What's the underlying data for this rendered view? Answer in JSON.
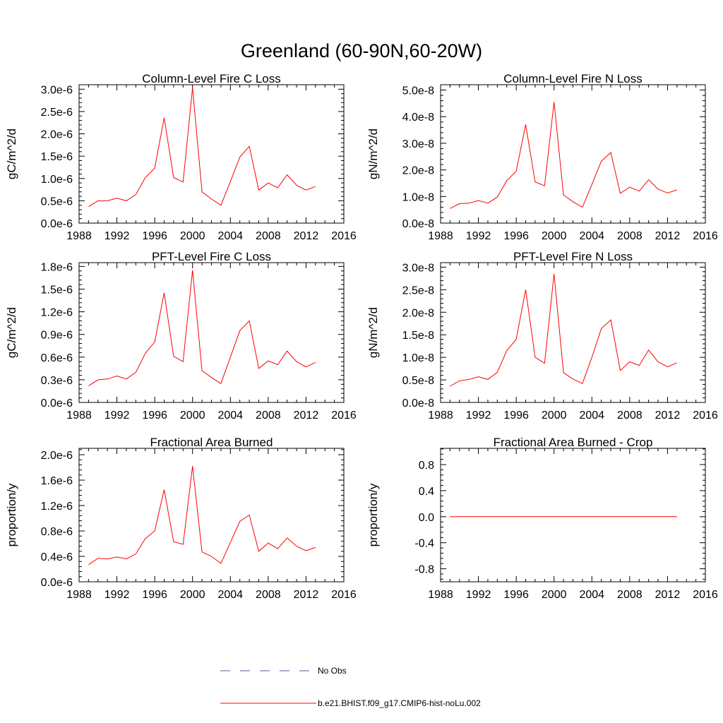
{
  "figure": {
    "title": "Greenland (60-90N,60-20W)"
  },
  "legend": {
    "items": [
      {
        "label": "No Obs",
        "color": "#5a5aa0",
        "dashed": true
      },
      {
        "label": "b.e21.BHIST.f09_g17.CMIP6-hist-noLu.002",
        "color": "#ff0000",
        "dashed": false
      }
    ]
  },
  "chart_data": [
    {
      "type": "line",
      "title": "Column-Level Fire C Loss",
      "ylabel": "gC/m^2/d",
      "xlim": [
        1988,
        2016
      ],
      "ylim": [
        0,
        3.1e-06
      ],
      "xticks": [
        1988,
        1992,
        1996,
        2000,
        2004,
        2008,
        2012,
        2016
      ],
      "yticks": [
        0,
        5e-07,
        1e-06,
        1.5e-06,
        2e-06,
        2.5e-06,
        3e-06
      ],
      "ytick_labels": [
        "0.0e-6",
        "0.5e-6",
        "1.0e-6",
        "1.5e-6",
        "2.0e-6",
        "2.5e-6",
        "3.0e-6"
      ],
      "x": [
        1989,
        1990,
        1991,
        1992,
        1993,
        1994,
        1995,
        1996,
        1997,
        1998,
        1999,
        2000,
        2001,
        2002,
        2003,
        2004,
        2005,
        2006,
        2007,
        2008,
        2009,
        2010,
        2011,
        2012,
        2013
      ],
      "series": [
        {
          "name": "b.e21.BHIST.f09_g17.CMIP6-hist-noLu.002",
          "color": "#ff0000",
          "values": [
            3.7e-07,
            5e-07,
            5e-07,
            5.6e-07,
            5e-07,
            6.4e-07,
            1.02e-06,
            1.23e-06,
            2.36e-06,
            1.02e-06,
            9.2e-07,
            3.03e-06,
            7e-07,
            5.4e-07,
            4e-07,
            9.3e-07,
            1.48e-06,
            1.72e-06,
            7.4e-07,
            9e-07,
            7.9e-07,
            1.08e-06,
            8.5e-07,
            7.4e-07,
            8.2e-07
          ]
        }
      ]
    },
    {
      "type": "line",
      "title": "Column-Level Fire N Loss",
      "ylabel": "gN/m^2/d",
      "xlim": [
        1988,
        2016
      ],
      "ylim": [
        0,
        5.2e-08
      ],
      "xticks": [
        1988,
        1992,
        1996,
        2000,
        2004,
        2008,
        2012,
        2016
      ],
      "yticks": [
        0,
        1e-08,
        2e-08,
        3e-08,
        4e-08,
        5e-08
      ],
      "ytick_labels": [
        "0.0e-8",
        "1.0e-8",
        "2.0e-8",
        "3.0e-8",
        "4.0e-8",
        "5.0e-8"
      ],
      "x": [
        1989,
        1990,
        1991,
        1992,
        1993,
        1994,
        1995,
        1996,
        1997,
        1998,
        1999,
        2000,
        2001,
        2002,
        2003,
        2004,
        2005,
        2006,
        2007,
        2008,
        2009,
        2010,
        2011,
        2012,
        2013
      ],
      "series": [
        {
          "name": "b.e21.BHIST.f09_g17.CMIP6-hist-noLu.002",
          "color": "#ff0000",
          "values": [
            5.5e-09,
            7.3e-09,
            7.5e-09,
            8.5e-09,
            7.5e-09,
            9.8e-09,
            1.6e-08,
            1.95e-08,
            3.7e-08,
            1.55e-08,
            1.4e-08,
            4.55e-08,
            1.06e-08,
            8e-09,
            6e-09,
            1.45e-08,
            2.33e-08,
            2.65e-08,
            1.12e-08,
            1.35e-08,
            1.2e-08,
            1.63e-08,
            1.28e-08,
            1.13e-08,
            1.25e-08
          ]
        }
      ]
    },
    {
      "type": "line",
      "title": "PFT-Level Fire C Loss",
      "ylabel": "gC/m^2/d",
      "xlim": [
        1988,
        2016
      ],
      "ylim": [
        0,
        1.85e-06
      ],
      "xticks": [
        1988,
        1992,
        1996,
        2000,
        2004,
        2008,
        2012,
        2016
      ],
      "yticks": [
        0,
        3e-07,
        6e-07,
        9e-07,
        1.2e-06,
        1.5e-06,
        1.8e-06
      ],
      "ytick_labels": [
        "0.0e-6",
        "0.3e-6",
        "0.6e-6",
        "0.9e-6",
        "1.2e-6",
        "1.5e-6",
        "1.8e-6"
      ],
      "x": [
        1989,
        1990,
        1991,
        1992,
        1993,
        1994,
        1995,
        1996,
        1997,
        1998,
        1999,
        2000,
        2001,
        2002,
        2003,
        2004,
        2005,
        2006,
        2007,
        2008,
        2009,
        2010,
        2011,
        2012,
        2013
      ],
      "series": [
        {
          "name": "b.e21.BHIST.f09_g17.CMIP6-hist-noLu.002",
          "color": "#ff0000",
          "values": [
            2.2e-07,
            3e-07,
            3.1e-07,
            3.5e-07,
            3.1e-07,
            4e-07,
            6.5e-07,
            8e-07,
            1.45e-06,
            6.1e-07,
            5.4e-07,
            1.75e-06,
            4.2e-07,
            3.3e-07,
            2.5e-07,
            6e-07,
            9.5e-07,
            1.08e-06,
            4.5e-07,
            5.5e-07,
            5e-07,
            6.8e-07,
            5.4e-07,
            4.7e-07,
            5.3e-07
          ]
        }
      ]
    },
    {
      "type": "line",
      "title": "PFT-Level Fire N Loss",
      "ylabel": "gN/m^2/d",
      "xlim": [
        1988,
        2016
      ],
      "ylim": [
        0,
        3.1e-08
      ],
      "xticks": [
        1988,
        1992,
        1996,
        2000,
        2004,
        2008,
        2012,
        2016
      ],
      "yticks": [
        0,
        5e-09,
        1e-08,
        1.5e-08,
        2e-08,
        2.5e-08,
        3e-08
      ],
      "ytick_labels": [
        "0.0e-8",
        "0.5e-8",
        "1.0e-8",
        "1.5e-8",
        "2.0e-8",
        "2.5e-8",
        "3.0e-8"
      ],
      "x": [
        1989,
        1990,
        1991,
        1992,
        1993,
        1994,
        1995,
        1996,
        1997,
        1998,
        1999,
        2000,
        2001,
        2002,
        2003,
        2004,
        2005,
        2006,
        2007,
        2008,
        2009,
        2010,
        2011,
        2012,
        2013
      ],
      "series": [
        {
          "name": "b.e21.BHIST.f09_g17.CMIP6-hist-noLu.002",
          "color": "#ff0000",
          "values": [
            3.6e-09,
            4.8e-09,
            5.1e-09,
            5.7e-09,
            5.1e-09,
            6.7e-09,
            1.15e-08,
            1.4e-08,
            2.5e-08,
            1e-08,
            8.7e-09,
            2.85e-08,
            6.6e-09,
            5.2e-09,
            4.2e-09,
            1e-08,
            1.64e-08,
            1.83e-08,
            7.1e-09,
            9e-09,
            8.2e-09,
            1.16e-08,
            9e-09,
            7.9e-09,
            8.8e-09
          ]
        }
      ]
    },
    {
      "type": "line",
      "title": "Fractional Area Burned",
      "ylabel": "proportion/y",
      "xlim": [
        1988,
        2016
      ],
      "ylim": [
        0,
        2.1e-06
      ],
      "xticks": [
        1988,
        1992,
        1996,
        2000,
        2004,
        2008,
        2012,
        2016
      ],
      "yticks": [
        0,
        4e-07,
        8e-07,
        1.2e-06,
        1.6e-06,
        2e-06
      ],
      "ytick_labels": [
        "0.0e-6",
        "0.4e-6",
        "0.8e-6",
        "1.2e-6",
        "1.6e-6",
        "2.0e-6"
      ],
      "x": [
        1989,
        1990,
        1991,
        1992,
        1993,
        1994,
        1995,
        1996,
        1997,
        1998,
        1999,
        2000,
        2001,
        2002,
        2003,
        2004,
        2005,
        2006,
        2007,
        2008,
        2009,
        2010,
        2011,
        2012,
        2013
      ],
      "series": [
        {
          "name": "b.e21.BHIST.f09_g17.CMIP6-hist-noLu.002",
          "color": "#ff0000",
          "values": [
            2.7e-07,
            3.7e-07,
            3.6e-07,
            3.9e-07,
            3.6e-07,
            4.4e-07,
            6.8e-07,
            8e-07,
            1.45e-06,
            6.3e-07,
            5.9e-07,
            1.82e-06,
            4.7e-07,
            4e-07,
            2.9e-07,
            6.2e-07,
            9.5e-07,
            1.05e-06,
            4.8e-07,
            6.1e-07,
            5.2e-07,
            6.9e-07,
            5.6e-07,
            4.9e-07,
            5.4e-07
          ]
        }
      ]
    },
    {
      "type": "line",
      "title": "Fractional Area Burned - Crop",
      "ylabel": "proportion/y",
      "xlim": [
        1988,
        2016
      ],
      "ylim": [
        -1.0,
        1.05
      ],
      "xticks": [
        1988,
        1992,
        1996,
        2000,
        2004,
        2008,
        2012,
        2016
      ],
      "yticks": [
        -0.8,
        -0.4,
        0,
        0.4,
        0.8
      ],
      "ytick_labels": [
        "-0.8",
        "-0.4",
        "0.0",
        "0.4",
        "0.8"
      ],
      "x": [
        1989,
        1990,
        1991,
        1992,
        1993,
        1994,
        1995,
        1996,
        1997,
        1998,
        1999,
        2000,
        2001,
        2002,
        2003,
        2004,
        2005,
        2006,
        2007,
        2008,
        2009,
        2010,
        2011,
        2012,
        2013
      ],
      "series": [
        {
          "name": "b.e21.BHIST.f09_g17.CMIP6-hist-noLu.002",
          "color": "#ff0000",
          "values": [
            0,
            0,
            0,
            0,
            0,
            0,
            0,
            0,
            0,
            0,
            0,
            0,
            0,
            0,
            0,
            0,
            0,
            0,
            0,
            0,
            0,
            0,
            0,
            0,
            0
          ]
        }
      ]
    }
  ]
}
